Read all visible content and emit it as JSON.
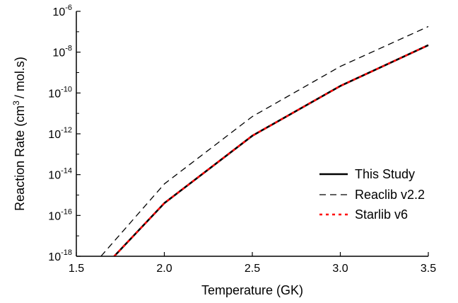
{
  "chart_data": {
    "type": "line",
    "title": "",
    "xlabel": "Temperature (GK)",
    "ylabel_parts": [
      "Reaction Rate (cm",
      "3",
      "/ mol.s)"
    ],
    "xlim": [
      1.5,
      3.5
    ],
    "ylim": [
      1e-18,
      1e-06
    ],
    "yscale": "log",
    "x_ticks": [
      1.5,
      2.0,
      2.5,
      3.0,
      3.5
    ],
    "x_tick_labels": [
      "1.5",
      "2.0",
      "2.5",
      "3.0",
      "3.5"
    ],
    "y_tick_exponents": [
      "-18",
      "-16",
      "-14",
      "-12",
      "-10",
      "-8",
      "-6"
    ],
    "y_tick_base": "10",
    "grid": false,
    "legend_position": "lower-right",
    "series": [
      {
        "name": "This Study",
        "style": "solid",
        "color": "#000000",
        "x": [
          1.715,
          2.0,
          2.5,
          3.0,
          3.5
        ],
        "y": [
          1e-18,
          4e-16,
          8e-13,
          2.2e-10,
          2.2e-08
        ]
      },
      {
        "name": "Reaclib v2.2",
        "style": "dashed",
        "color": "#000000",
        "x": [
          1.64,
          2.0,
          2.5,
          3.0,
          3.5
        ],
        "y": [
          1e-18,
          3.5e-15,
          7e-12,
          2e-09,
          1.8e-07
        ]
      },
      {
        "name": "Starlib v6",
        "style": "dotted",
        "color": "#ff0000",
        "x": [
          1.715,
          2.0,
          2.5,
          3.0,
          3.5
        ],
        "y": [
          1e-18,
          4e-16,
          8e-13,
          2.2e-10,
          2.2e-08
        ]
      }
    ]
  }
}
